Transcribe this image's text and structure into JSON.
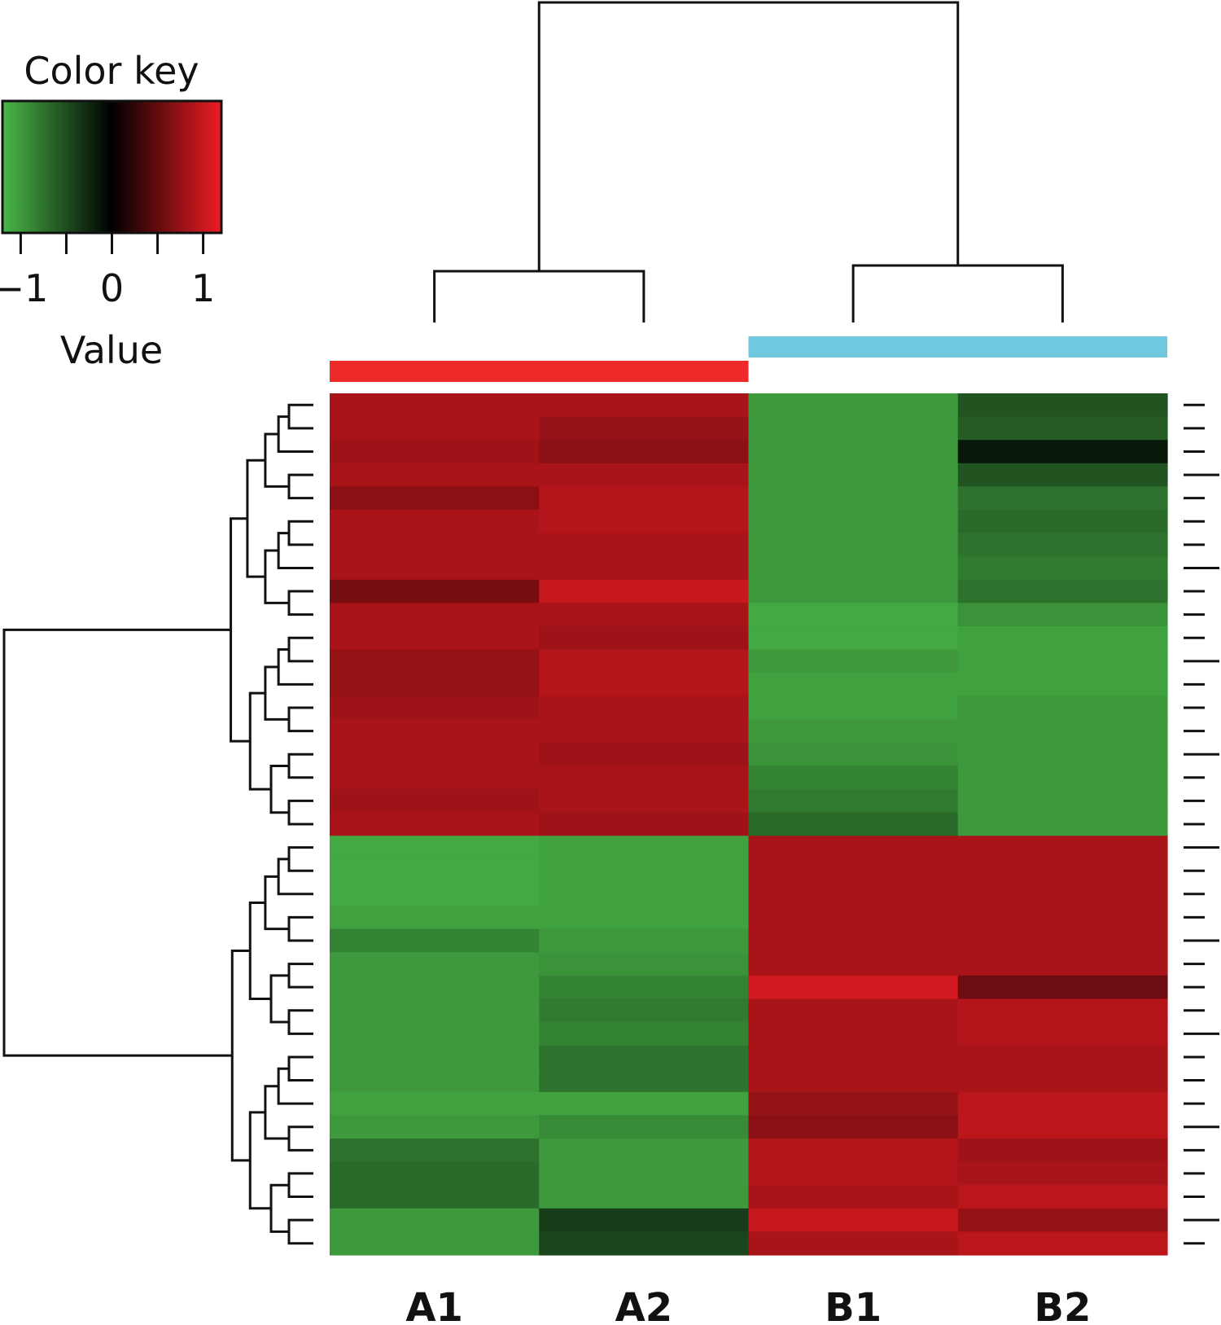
{
  "chart_data": {
    "type": "heatmap",
    "columns": [
      "A1",
      "A2",
      "B1",
      "B2"
    ],
    "column_groups": [
      {
        "columns": [
          "A1",
          "A2"
        ],
        "color": "#ee2a2a"
      },
      {
        "columns": [
          "B1",
          "B2"
        ],
        "color": "#6ec9df"
      }
    ],
    "color_key": {
      "title": "Color key",
      "label": "Value",
      "range": [
        -1.2,
        1.2
      ],
      "ticks": [
        -1,
        -0.5,
        0,
        0.5,
        1
      ],
      "tick_labels": [
        "−1",
        "0",
        "1"
      ],
      "tick_label_values": [
        -1,
        0,
        1
      ],
      "colors": {
        "low": "#49b848",
        "mid": "#000000",
        "high": "#ee1c24"
      }
    },
    "column_dendrogram": {
      "merges": [
        [
          "A1",
          "A2"
        ],
        [
          "B1",
          "B2"
        ],
        [
          "A",
          "B"
        ]
      ]
    },
    "row_dendrogram": {
      "clusters": 2
    },
    "rows": [
      [
        0.85,
        0.85,
        -1.0,
        -0.55
      ],
      [
        0.85,
        0.75,
        -1.0,
        -0.6
      ],
      [
        0.8,
        0.7,
        -1.0,
        -0.15
      ],
      [
        0.85,
        0.85,
        -1.0,
        -0.55
      ],
      [
        0.7,
        0.9,
        -1.0,
        -0.75
      ],
      [
        0.85,
        0.9,
        -1.0,
        -0.7
      ],
      [
        0.85,
        0.85,
        -1.0,
        -0.75
      ],
      [
        0.85,
        0.85,
        -1.0,
        -0.8
      ],
      [
        0.6,
        1.0,
        -1.0,
        -0.75
      ],
      [
        0.85,
        0.85,
        -1.1,
        -0.95
      ],
      [
        0.85,
        0.8,
        -1.1,
        -1.05
      ],
      [
        0.75,
        0.9,
        -1.0,
        -1.05
      ],
      [
        0.75,
        0.9,
        -1.05,
        -1.05
      ],
      [
        0.8,
        0.85,
        -1.05,
        -1.0
      ],
      [
        0.85,
        0.85,
        -1.0,
        -1.0
      ],
      [
        0.85,
        0.8,
        -0.95,
        -1.0
      ],
      [
        0.85,
        0.85,
        -0.85,
        -1.0
      ],
      [
        0.8,
        0.85,
        -0.8,
        -1.0
      ],
      [
        0.85,
        0.8,
        -0.7,
        -1.0
      ],
      [
        -1.1,
        -1.05,
        0.85,
        0.85
      ],
      [
        -1.1,
        -1.05,
        0.85,
        0.85
      ],
      [
        -1.1,
        -1.05,
        0.85,
        0.85
      ],
      [
        -1.05,
        -1.05,
        0.85,
        0.85
      ],
      [
        -0.85,
        -1.0,
        0.85,
        0.85
      ],
      [
        -1.0,
        -0.95,
        0.85,
        0.85
      ],
      [
        -1.0,
        -0.85,
        1.05,
        0.55
      ],
      [
        -1.0,
        -0.8,
        0.85,
        0.9
      ],
      [
        -1.0,
        -0.85,
        0.85,
        0.9
      ],
      [
        -1.0,
        -0.75,
        0.85,
        0.85
      ],
      [
        -1.0,
        -0.75,
        0.85,
        0.85
      ],
      [
        -1.05,
        -1.05,
        0.75,
        0.95
      ],
      [
        -1.0,
        -0.9,
        0.7,
        0.95
      ],
      [
        -0.75,
        -1.0,
        0.9,
        0.8
      ],
      [
        -0.7,
        -1.0,
        0.9,
        0.85
      ],
      [
        -0.7,
        -1.0,
        0.85,
        0.95
      ],
      [
        -1.0,
        -0.4,
        1.0,
        0.75
      ],
      [
        -1.0,
        -0.45,
        0.85,
        0.95
      ]
    ]
  }
}
